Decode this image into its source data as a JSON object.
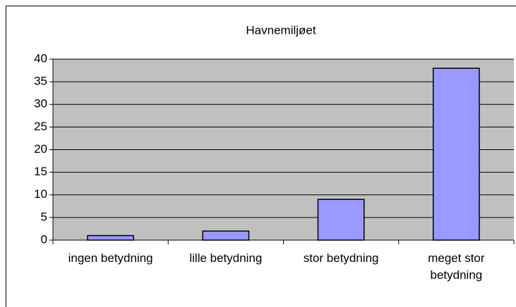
{
  "chart_data": {
    "type": "bar",
    "title": "Havnemiljøet",
    "categories": [
      "ingen betydning",
      "lille betydning",
      "stor betydning",
      "meget stor betydning"
    ],
    "values": [
      1,
      2,
      9,
      38
    ],
    "color": "#9999ff",
    "ylim": [
      0,
      40
    ],
    "yticks": [
      0,
      5,
      10,
      15,
      20,
      25,
      30,
      35,
      40
    ],
    "grid": true
  }
}
